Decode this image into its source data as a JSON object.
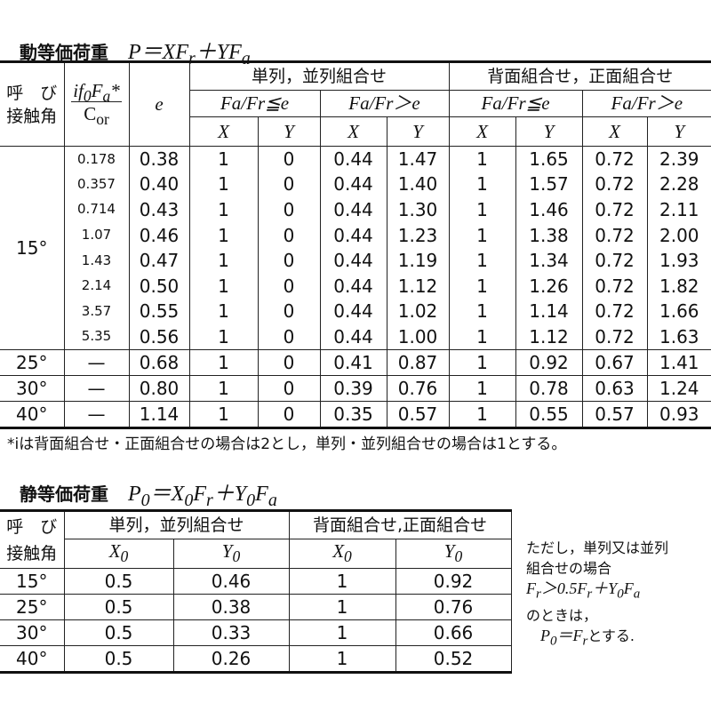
{
  "dynamic": {
    "title": "動等価荷重",
    "formula": "P＝XFr＋YFa",
    "headers": {
      "angle": "呼 び 接触角",
      "ratio": "if0Fa*/Cor",
      "e": "e",
      "single": "単列，並列組合せ",
      "back": "背面組合せ，正面組合せ",
      "cond1": "Fa/Fr≦e",
      "cond2": "Fa/Fr＞e",
      "x": "X",
      "y": "Y"
    },
    "angle_15": "15°",
    "rows_15": [
      [
        "0.178",
        "0.38",
        "1",
        "0",
        "0.44",
        "1.47",
        "1",
        "1.65",
        "0.72",
        "2.39"
      ],
      [
        "0.357",
        "0.40",
        "1",
        "0",
        "0.44",
        "1.40",
        "1",
        "1.57",
        "0.72",
        "2.28"
      ],
      [
        "0.714",
        "0.43",
        "1",
        "0",
        "0.44",
        "1.30",
        "1",
        "1.46",
        "0.72",
        "2.11"
      ],
      [
        "1.07",
        "0.46",
        "1",
        "0",
        "0.44",
        "1.23",
        "1",
        "1.38",
        "0.72",
        "2.00"
      ],
      [
        "1.43",
        "0.47",
        "1",
        "0",
        "0.44",
        "1.19",
        "1",
        "1.34",
        "0.72",
        "1.93"
      ],
      [
        "2.14",
        "0.50",
        "1",
        "0",
        "0.44",
        "1.12",
        "1",
        "1.26",
        "0.72",
        "1.82"
      ],
      [
        "3.57",
        "0.55",
        "1",
        "0",
        "0.44",
        "1.02",
        "1",
        "1.14",
        "0.72",
        "1.66"
      ],
      [
        "5.35",
        "0.56",
        "1",
        "0",
        "0.44",
        "1.00",
        "1",
        "1.12",
        "0.72",
        "1.63"
      ]
    ],
    "rows_other": [
      [
        "25°",
        "—",
        "0.68",
        "1",
        "0",
        "0.41",
        "0.87",
        "1",
        "0.92",
        "0.67",
        "1.41"
      ],
      [
        "30°",
        "—",
        "0.80",
        "1",
        "0",
        "0.39",
        "0.76",
        "1",
        "0.78",
        "0.63",
        "1.24"
      ],
      [
        "40°",
        "—",
        "1.14",
        "1",
        "0",
        "0.35",
        "0.57",
        "1",
        "0.55",
        "0.57",
        "0.93"
      ]
    ],
    "footnote": "*iは背面組合せ・正面組合せの場合は2とし，単列・並列組合せの場合は1とする。"
  },
  "static": {
    "title": "静等価荷重",
    "formula": "P0＝X0Fr＋Y0Fa",
    "headers": {
      "angle": "呼 び 接触角",
      "single": "単列，並列組合せ",
      "back": "背面組合せ,正面組合せ",
      "x0": "X0",
      "y0": "Y0"
    },
    "rows": [
      [
        "15°",
        "0.5",
        "0.46",
        "1",
        "0.92"
      ],
      [
        "25°",
        "0.5",
        "0.38",
        "1",
        "0.76"
      ],
      [
        "30°",
        "0.5",
        "0.33",
        "1",
        "0.66"
      ],
      [
        "40°",
        "0.5",
        "0.26",
        "1",
        "0.52"
      ]
    ],
    "note": [
      "ただし，単列又は並列",
      "組合せの場合",
      "Fr＞0.5Fr＋Y0Fa",
      "のときは，",
      "P0＝Frとする."
    ]
  }
}
